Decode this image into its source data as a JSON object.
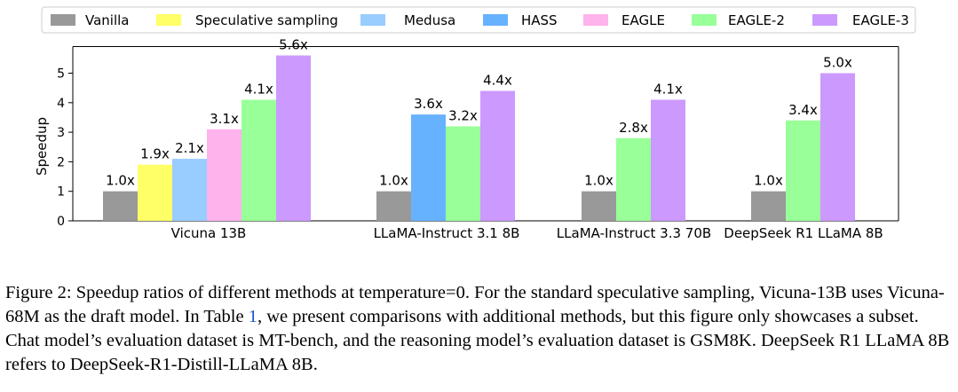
{
  "chart_data": {
    "type": "bar",
    "title": "",
    "xlabel": "",
    "ylabel": "Speedup",
    "ylim": [
      0,
      5.9
    ],
    "yticks": [
      "0",
      "1",
      "2",
      "3",
      "4",
      "5"
    ],
    "legend_position": "top",
    "colors": {
      "Vanilla": "#999999",
      "Speculative sampling": "#ffff66",
      "Medusa": "#99ccff",
      "HASS": "#66b2ff",
      "EAGLE": "#ffb3ec",
      "EAGLE-2": "#99ff99",
      "EAGLE-3": "#cc99ff"
    },
    "legend": [
      "Vanilla",
      "Speculative sampling",
      "Medusa",
      "HASS",
      "EAGLE",
      "EAGLE-2",
      "EAGLE-3"
    ],
    "groups": [
      {
        "category": "Vicuna 13B",
        "bars": [
          {
            "series": "Vanilla",
            "value": 1.0,
            "label": "1.0x"
          },
          {
            "series": "Speculative sampling",
            "value": 1.9,
            "label": "1.9x"
          },
          {
            "series": "Medusa",
            "value": 2.1,
            "label": "2.1x"
          },
          {
            "series": "EAGLE",
            "value": 3.1,
            "label": "3.1x"
          },
          {
            "series": "EAGLE-2",
            "value": 4.1,
            "label": "4.1x"
          },
          {
            "series": "EAGLE-3",
            "value": 5.6,
            "label": "5.6x"
          }
        ]
      },
      {
        "category": "LLaMA-Instruct 3.1 8B",
        "bars": [
          {
            "series": "Vanilla",
            "value": 1.0,
            "label": "1.0x"
          },
          {
            "series": "HASS",
            "value": 3.6,
            "label": "3.6x"
          },
          {
            "series": "EAGLE-2",
            "value": 3.2,
            "label": "3.2x"
          },
          {
            "series": "EAGLE-3",
            "value": 4.4,
            "label": "4.4x"
          }
        ]
      },
      {
        "category": "LLaMA-Instruct 3.3 70B",
        "bars": [
          {
            "series": "Vanilla",
            "value": 1.0,
            "label": "1.0x"
          },
          {
            "series": "EAGLE-2",
            "value": 2.8,
            "label": "2.8x"
          },
          {
            "series": "EAGLE-3",
            "value": 4.1,
            "label": "4.1x"
          }
        ]
      },
      {
        "category": "DeepSeek R1 LLaMA 8B",
        "bars": [
          {
            "series": "Vanilla",
            "value": 1.0,
            "label": "1.0x"
          },
          {
            "series": "EAGLE-2",
            "value": 3.4,
            "label": "3.4x"
          },
          {
            "series": "EAGLE-3",
            "value": 5.0,
            "label": "5.0x"
          }
        ]
      }
    ]
  },
  "caption": {
    "part1": "Figure 2: Speedup ratios of different methods at temperature=0. For the standard speculative sampling, Vicuna-13B uses Vicuna-68M as the draft model. In Table ",
    "ref": "1",
    "part2": ", we present comparisons with additional methods, but this figure only showcases a subset. Chat model’s evaluation dataset is MT-bench, and the reasoning model’s evaluation dataset is GSM8K. DeepSeek R1 LLaMA 8B refers to DeepSeek-R1-Distill-LLaMA 8B."
  }
}
